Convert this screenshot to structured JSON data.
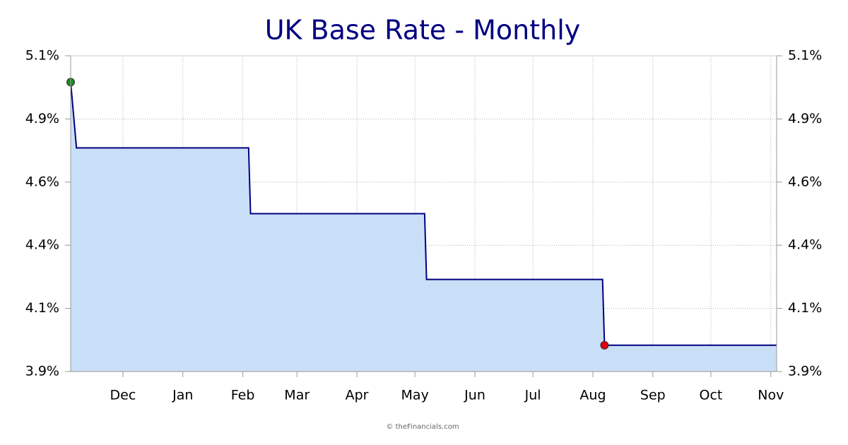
{
  "chart_data": {
    "type": "area",
    "title": "UK Base Rate - Monthly",
    "footer": "© theFinancials.com",
    "x": [
      0,
      3,
      92,
      93,
      183,
      184,
      275,
      276,
      365
    ],
    "series": [
      {
        "color": "#000080",
        "fill": "#c9dff7",
        "values": [
          5.0,
          4.75,
          4.75,
          4.5,
          4.5,
          4.25,
          4.25,
          4.0,
          4.0
        ],
        "marker_colors": [
          "#1a8a1a",
          null,
          null,
          null,
          null,
          null,
          null,
          "#e00010",
          null
        ]
      }
    ],
    "xlim": [
      0,
      365
    ],
    "xticks": [
      {
        "value": 27,
        "label": "Dec"
      },
      {
        "value": 58,
        "label": "Jan"
      },
      {
        "value": 89,
        "label": "Feb"
      },
      {
        "value": 117,
        "label": "Mar"
      },
      {
        "value": 148,
        "label": "Apr"
      },
      {
        "value": 178,
        "label": "May"
      },
      {
        "value": 209,
        "label": "Jun"
      },
      {
        "value": 239,
        "label": "Jul"
      },
      {
        "value": 270,
        "label": "Aug"
      },
      {
        "value": 301,
        "label": "Sep"
      },
      {
        "value": 331,
        "label": "Oct"
      },
      {
        "value": 362,
        "label": "Nov"
      }
    ],
    "ylim": [
      3.9,
      5.1
    ],
    "yticks": [
      {
        "value": 3.9,
        "label": "3.9%"
      },
      {
        "value": 4.14,
        "label": "4.1%"
      },
      {
        "value": 4.38,
        "label": "4.4%"
      },
      {
        "value": 4.62,
        "label": "4.6%"
      },
      {
        "value": 4.86,
        "label": "4.9%"
      },
      {
        "value": 5.1,
        "label": "5.1%"
      }
    ],
    "grid": true
  }
}
